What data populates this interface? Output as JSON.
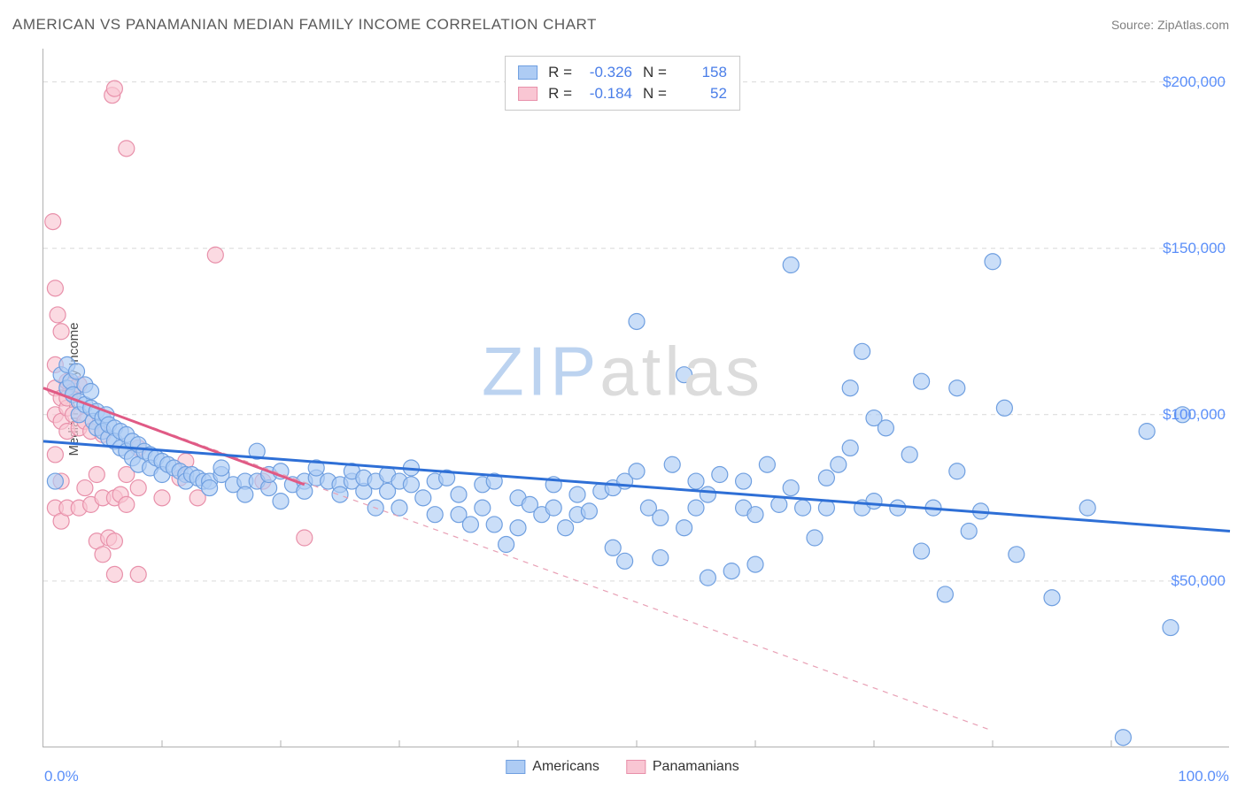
{
  "title": "AMERICAN VS PANAMANIAN MEDIAN FAMILY INCOME CORRELATION CHART",
  "source_label": "Source: ZipAtlas.com",
  "ylabel": "Median Family Income",
  "watermark": {
    "part1": "ZIP",
    "part2": "atlas"
  },
  "chart": {
    "type": "scatter",
    "xlim": [
      0,
      100
    ],
    "ylim": [
      0,
      210000
    ],
    "x_tick_label_left": "0.0%",
    "x_tick_label_right": "100.0%",
    "y_ticks": [
      50000,
      100000,
      150000,
      200000
    ],
    "y_tick_labels": [
      "$50,000",
      "$100,000",
      "$150,000",
      "$200,000"
    ],
    "x_minor_ticks": [
      10,
      20,
      30,
      40,
      50,
      60,
      70,
      80,
      90
    ],
    "grid_color": "#d9d9d9",
    "grid_dash": "5,5",
    "axis_color": "#b0b0b0",
    "background_color": "#ffffff",
    "tick_label_color": "#5b8ff9",
    "tick_label_fontsize": 17,
    "title_color": "#5a5a5a",
    "title_fontsize": 17,
    "marker_radius": 9,
    "marker_stroke_width": 1.2,
    "series": [
      {
        "name": "Americans",
        "fill": "#aeccf4",
        "stroke": "#6f9fe0",
        "fill_opacity": 0.65,
        "R": "-0.326",
        "N": "158",
        "trend": {
          "x1": 0,
          "y1": 92000,
          "x2": 100,
          "y2": 65000,
          "stroke": "#2e6fd6",
          "width": 3,
          "dash": ""
        },
        "points": [
          [
            1,
            80000
          ],
          [
            1.5,
            112000
          ],
          [
            2,
            115000
          ],
          [
            2,
            108000
          ],
          [
            2.3,
            110000
          ],
          [
            2.5,
            106000
          ],
          [
            2.8,
            113000
          ],
          [
            3,
            104000
          ],
          [
            3,
            100000
          ],
          [
            3.5,
            103000
          ],
          [
            3.5,
            109000
          ],
          [
            4,
            102000
          ],
          [
            4,
            107000
          ],
          [
            4.2,
            98000
          ],
          [
            4.5,
            101000
          ],
          [
            4.5,
            96000
          ],
          [
            5,
            99000
          ],
          [
            5,
            95000
          ],
          [
            5.3,
            100000
          ],
          [
            5.5,
            93000
          ],
          [
            5.5,
            97000
          ],
          [
            6,
            96000
          ],
          [
            6,
            92000
          ],
          [
            6.5,
            95000
          ],
          [
            6.5,
            90000
          ],
          [
            7,
            94000
          ],
          [
            7,
            89000
          ],
          [
            7.5,
            92000
          ],
          [
            7.5,
            87000
          ],
          [
            8,
            91000
          ],
          [
            8,
            85000
          ],
          [
            8.5,
            89000
          ],
          [
            9,
            88000
          ],
          [
            9,
            84000
          ],
          [
            9.5,
            87000
          ],
          [
            10,
            86000
          ],
          [
            10,
            82000
          ],
          [
            10.5,
            85000
          ],
          [
            11,
            84000
          ],
          [
            11.5,
            83000
          ],
          [
            12,
            82000
          ],
          [
            12,
            80000
          ],
          [
            12.5,
            82000
          ],
          [
            13,
            81000
          ],
          [
            13.5,
            80000
          ],
          [
            14,
            80000
          ],
          [
            14,
            78000
          ],
          [
            15,
            82000
          ],
          [
            15,
            84000
          ],
          [
            16,
            79000
          ],
          [
            17,
            80000
          ],
          [
            17,
            76000
          ],
          [
            18,
            80000
          ],
          [
            18,
            89000
          ],
          [
            19,
            78000
          ],
          [
            19,
            82000
          ],
          [
            20,
            83000
          ],
          [
            20,
            74000
          ],
          [
            21,
            79000
          ],
          [
            22,
            80000
          ],
          [
            22,
            77000
          ],
          [
            23,
            81000
          ],
          [
            23,
            84000
          ],
          [
            24,
            80000
          ],
          [
            25,
            79000
          ],
          [
            25,
            76000
          ],
          [
            26,
            80000
          ],
          [
            26,
            83000
          ],
          [
            27,
            77000
          ],
          [
            27,
            81000
          ],
          [
            28,
            80000
          ],
          [
            28,
            72000
          ],
          [
            29,
            82000
          ],
          [
            29,
            77000
          ],
          [
            30,
            80000
          ],
          [
            30,
            72000
          ],
          [
            31,
            79000
          ],
          [
            31,
            84000
          ],
          [
            32,
            75000
          ],
          [
            33,
            80000
          ],
          [
            33,
            70000
          ],
          [
            34,
            81000
          ],
          [
            35,
            76000
          ],
          [
            35,
            70000
          ],
          [
            36,
            67000
          ],
          [
            37,
            79000
          ],
          [
            37,
            72000
          ],
          [
            38,
            80000
          ],
          [
            38,
            67000
          ],
          [
            39,
            61000
          ],
          [
            40,
            75000
          ],
          [
            40,
            66000
          ],
          [
            41,
            73000
          ],
          [
            42,
            70000
          ],
          [
            43,
            79000
          ],
          [
            43,
            72000
          ],
          [
            44,
            66000
          ],
          [
            45,
            76000
          ],
          [
            45,
            70000
          ],
          [
            46,
            71000
          ],
          [
            47,
            77000
          ],
          [
            48,
            78000
          ],
          [
            48,
            60000
          ],
          [
            49,
            80000
          ],
          [
            49,
            56000
          ],
          [
            50,
            128000
          ],
          [
            50,
            83000
          ],
          [
            51,
            72000
          ],
          [
            52,
            69000
          ],
          [
            52,
            57000
          ],
          [
            53,
            85000
          ],
          [
            54,
            112000
          ],
          [
            54,
            66000
          ],
          [
            55,
            80000
          ],
          [
            55,
            72000
          ],
          [
            56,
            76000
          ],
          [
            56,
            51000
          ],
          [
            57,
            82000
          ],
          [
            58,
            53000
          ],
          [
            59,
            80000
          ],
          [
            59,
            72000
          ],
          [
            60,
            70000
          ],
          [
            60,
            55000
          ],
          [
            61,
            85000
          ],
          [
            62,
            73000
          ],
          [
            63,
            145000
          ],
          [
            63,
            78000
          ],
          [
            64,
            72000
          ],
          [
            65,
            63000
          ],
          [
            66,
            81000
          ],
          [
            66,
            72000
          ],
          [
            67,
            85000
          ],
          [
            68,
            90000
          ],
          [
            68,
            108000
          ],
          [
            69,
            72000
          ],
          [
            69,
            119000
          ],
          [
            70,
            99000
          ],
          [
            70,
            74000
          ],
          [
            71,
            96000
          ],
          [
            72,
            72000
          ],
          [
            73,
            88000
          ],
          [
            74,
            110000
          ],
          [
            74,
            59000
          ],
          [
            75,
            72000
          ],
          [
            76,
            46000
          ],
          [
            77,
            83000
          ],
          [
            77,
            108000
          ],
          [
            78,
            65000
          ],
          [
            79,
            71000
          ],
          [
            80,
            146000
          ],
          [
            81,
            102000
          ],
          [
            82,
            58000
          ],
          [
            85,
            45000
          ],
          [
            88,
            72000
          ],
          [
            91,
            3000
          ],
          [
            93,
            95000
          ],
          [
            95,
            36000
          ],
          [
            96,
            100000
          ]
        ]
      },
      {
        "name": "Panamanians",
        "fill": "#f9c6d3",
        "stroke": "#e890aa",
        "fill_opacity": 0.65,
        "R": "-0.184",
        "N": "52",
        "trend": {
          "x1": 0,
          "y1": 108000,
          "x2": 80,
          "y2": 5000,
          "stroke": "#e8a0b5",
          "width": 1.2,
          "dash": "6,6"
        },
        "trend_solid": {
          "x1": 0,
          "y1": 108000,
          "x2": 22,
          "y2": 79000,
          "stroke": "#e05a85",
          "width": 3,
          "dash": ""
        },
        "points": [
          [
            0.8,
            158000
          ],
          [
            1,
            138000
          ],
          [
            1,
            115000
          ],
          [
            1,
            108000
          ],
          [
            1,
            100000
          ],
          [
            1,
            88000
          ],
          [
            1,
            72000
          ],
          [
            1.2,
            130000
          ],
          [
            1.5,
            125000
          ],
          [
            1.5,
            105000
          ],
          [
            1.5,
            98000
          ],
          [
            1.5,
            80000
          ],
          [
            1.5,
            68000
          ],
          [
            2,
            110000
          ],
          [
            2,
            102000
          ],
          [
            2,
            95000
          ],
          [
            2,
            105000
          ],
          [
            2,
            72000
          ],
          [
            2.5,
            100000
          ],
          [
            2.5,
            107000
          ],
          [
            3,
            96000
          ],
          [
            3,
            109000
          ],
          [
            3,
            72000
          ],
          [
            3.5,
            98000
          ],
          [
            3.5,
            78000
          ],
          [
            4,
            95000
          ],
          [
            4,
            73000
          ],
          [
            4.5,
            62000
          ],
          [
            4.5,
            82000
          ],
          [
            5,
            94000
          ],
          [
            5,
            58000
          ],
          [
            5,
            75000
          ],
          [
            5.5,
            63000
          ],
          [
            5.8,
            196000
          ],
          [
            6,
            198000
          ],
          [
            6,
            52000
          ],
          [
            6,
            75000
          ],
          [
            6,
            62000
          ],
          [
            6.5,
            76000
          ],
          [
            7,
            180000
          ],
          [
            7,
            82000
          ],
          [
            7,
            73000
          ],
          [
            8,
            90000
          ],
          [
            8,
            52000
          ],
          [
            8,
            78000
          ],
          [
            10,
            75000
          ],
          [
            11.5,
            81000
          ],
          [
            12,
            86000
          ],
          [
            13,
            75000
          ],
          [
            14.5,
            148000
          ],
          [
            18.5,
            80000
          ],
          [
            22,
            63000
          ]
        ]
      }
    ]
  },
  "legend_top": {
    "r_label": "R =",
    "n_label": "N ="
  },
  "legend_bottom": [
    "Americans",
    "Panamanians"
  ]
}
